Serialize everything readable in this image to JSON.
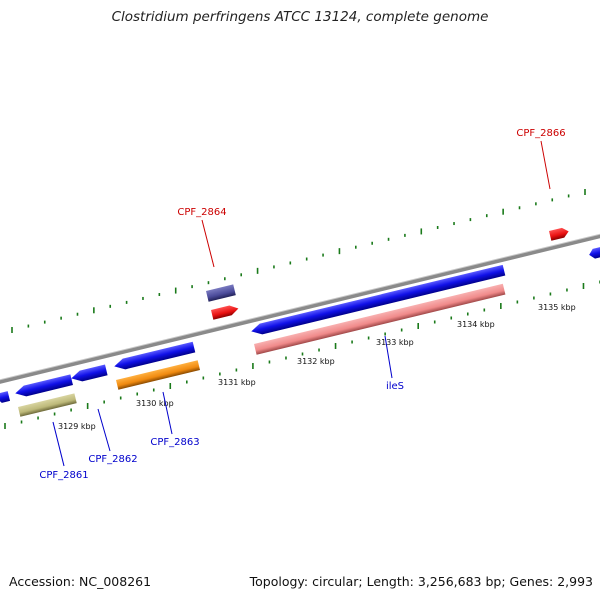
{
  "title": "Clostridium perfringens ATCC 13124, complete genome",
  "footer": {
    "accession": "Accession: NC_008261",
    "summary": "Topology: circular; Length: 3,256,683 bp; Genes: 2,993"
  },
  "scale": {
    "ticks": [
      "3129 kbp",
      "3130 kbp",
      "3131 kbp",
      "3132 kbp",
      "3133 kbp",
      "3134 kbp",
      "3135 kbp"
    ]
  },
  "gene_labels": [
    {
      "name": "CPF_2861",
      "strand": "reverse"
    },
    {
      "name": "CPF_2862",
      "strand": "reverse"
    },
    {
      "name": "CPF_2863",
      "strand": "reverse"
    },
    {
      "name": "ileS",
      "strand": "reverse"
    },
    {
      "name": "CPF_2864",
      "strand": "forward"
    },
    {
      "name": "CPF_2866",
      "strand": "forward"
    }
  ],
  "colors": {
    "cds": "#1010e8",
    "trna": "#e81010",
    "forward_label": "#cc0000",
    "reverse_label": "#0000cc",
    "backbone": "#8a8a8a",
    "tick": "#1a7a1a",
    "ies_feature": "#f08a8a",
    "cpf2863_feature": "#f08a10",
    "cpf2861_feature": "#bdb97a",
    "cpf2864_feature": "#4b4b9a"
  }
}
